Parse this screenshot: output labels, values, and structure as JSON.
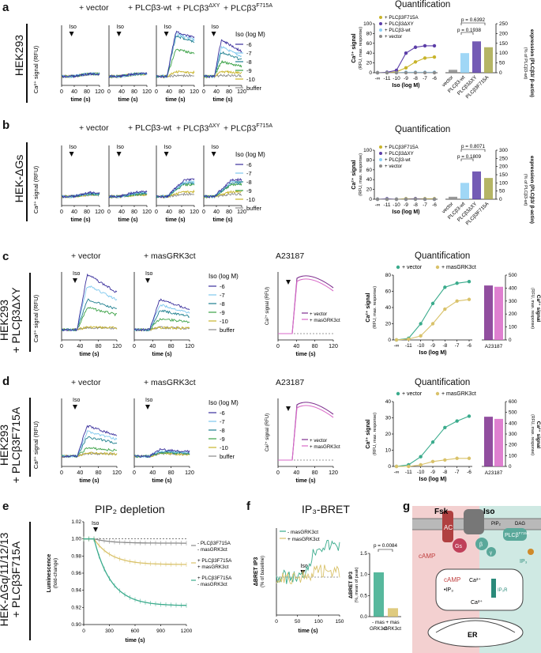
{
  "colors": {
    "c_m6": "#3a2f9c",
    "c_m7": "#7fc8ee",
    "c_m8": "#1e7f8e",
    "c_m9": "#3aa145",
    "c_m10": "#c8b42a",
    "c_buf": "#8a8a8a",
    "teal": "#3aab8c",
    "gold": "#d9c26a",
    "dark_purple": "#7e2f8e",
    "pink": "#d96ac8",
    "gray": "#8a8a8a",
    "lightblue": "#8fd0f5",
    "bar_purple": "#5c3ea8",
    "bar_olive": "#a8a84a",
    "g_red_bg": "#f3d0d0",
    "g_teal_bg": "#cfe9e3"
  },
  "panels": {
    "a": {
      "label": "a",
      "row_label": "HEK293",
      "conditions": [
        "+ vector",
        "+ PLCβ3-wt",
        "+ PLCβ3",
        "+ PLCβ3"
      ],
      "superscripts": [
        "",
        "",
        "ΔXY",
        "F715A"
      ],
      "quant_title": "Quantification",
      "legend_title": "Iso (log M)",
      "legend_entries": [
        "-6",
        "-7",
        "-8",
        "-9",
        "-10",
        "buffer"
      ],
      "ylabel": "Ca²⁺ signal (RFU)",
      "xlabel": "time (s)",
      "xticks": [
        "0",
        "40",
        "80",
        "120"
      ],
      "iso": "Iso",
      "quant_legend": [
        "+ PLCβ3F715A",
        "+ PLCβ3ΔXY",
        "+ PLCβ3-wt",
        "+ vector"
      ],
      "quant_ylabel": "Ca²⁺ signal",
      "quant_ylabel2": "(RFU, max. response)",
      "quant_xlabel": "Iso (log M)",
      "quant_yticks": [
        "0",
        "20",
        "40",
        "60",
        "80",
        "100"
      ],
      "quant_xticks": [
        "-∞",
        "-11",
        "-10",
        "-9",
        "-8",
        "-7",
        "-6"
      ],
      "bar_pvals": [
        "p = 0.6392",
        "p = 0.1938"
      ],
      "bar_yticks": [
        "0",
        "50",
        "100",
        "150",
        "200",
        "250"
      ],
      "bar_categories": [
        "vector",
        "PLCβ3-wt",
        "PLCβ3ΔXY",
        "PLCβ3F715A"
      ],
      "bar_ylabel": "expression (PLCβ3/ β-actin)",
      "bar_ylabel2": "(% of PLCβ3-wt)"
    },
    "b": {
      "label": "b",
      "row_label": "HEK-ΔGs",
      "conditions": [
        "+ vector",
        "+ PLCβ3-wt",
        "+ PLCβ3",
        "+ PLCβ3"
      ],
      "superscripts": [
        "",
        "",
        "ΔXY",
        "F715A"
      ],
      "quant_title": "Quantification",
      "legend_title": "Iso (log M)",
      "legend_entries": [
        "-6",
        "-7",
        "-8",
        "-9",
        "-10",
        "buffer"
      ],
      "ylabel": "Ca²⁺ signal (RFU)",
      "xlabel": "time (s)",
      "xticks": [
        "0",
        "40",
        "80",
        "120"
      ],
      "iso": "Iso",
      "quant_legend": [
        "+ PLCβ3F715A",
        "+ PLCβ3ΔXY",
        "+ PLCβ3-wt",
        "+ vector"
      ],
      "quant_ylabel": "Ca²⁺ signal",
      "quant_ylabel2": "(RFU, max. response)",
      "quant_xlabel": "Iso (log M)",
      "quant_yticks": [
        "0",
        "20",
        "40",
        "60",
        "80",
        "100"
      ],
      "quant_xticks": [
        "-∞",
        "-11",
        "-10",
        "-9",
        "-8",
        "-7",
        "-6"
      ],
      "bar_pvals": [
        "p = 0.8071",
        "p = 0.1809"
      ],
      "bar_yticks": [
        "0",
        "50",
        "100",
        "150",
        "200",
        "250",
        "300"
      ],
      "bar_categories": [
        "vector",
        "PLCβ3-wt",
        "PLCβ3ΔXY",
        "PLCβ3F715A"
      ],
      "bar_ylabel": "expression (PLCβ3/ β-actin)",
      "bar_ylabel2": "(% of PLCβ3-wt)"
    },
    "c": {
      "label": "c",
      "row_label_1": "HEK293",
      "row_label_2": "+ PLCβ3ΔXY",
      "conditions": [
        "+ vector",
        "+ masGRK3ct",
        "A23187",
        "Quantification"
      ],
      "legend_title": "Iso (log M)",
      "legend_entries": [
        "-6",
        "-7",
        "-8",
        "-9",
        "-10",
        "buffer"
      ],
      "a23_legend": [
        "+ vector",
        "+ masGRK3ct"
      ],
      "quant_legend": [
        "+ vector",
        "+ masGRK3ct"
      ],
      "ylabel": "Ca²⁺ signal (RFU)",
      "xlabel": "time (s)",
      "xticks": [
        "0",
        "40",
        "80",
        "120"
      ],
      "iso": "Iso",
      "quant_ylabel": "Ca²⁺ signal",
      "quant_ylabel2": "(RFU, max. response)",
      "quant_xlabel": "Iso (log M)",
      "quant_yticks": [
        "0",
        "20",
        "40",
        "60",
        "80"
      ],
      "quant_xticks": [
        "-∞",
        "-11",
        "-10",
        "-9",
        "-8",
        "-7",
        "-6"
      ],
      "bar_yticks": [
        "0",
        "100",
        "200",
        "300",
        "400",
        "500"
      ],
      "bar_category": "A23187",
      "bar_ylabel": "Ca²⁺ signal",
      "bar_ylabel2": "(RFU, max. response)"
    },
    "d": {
      "label": "d",
      "row_label_1": "HEK293",
      "row_label_2": "+ PLCβ3F715A",
      "conditions": [
        "+ vector",
        "+ masGRK3ct",
        "A23187",
        "Quantification"
      ],
      "legend_title": "Iso (log M)",
      "legend_entries": [
        "-6",
        "-7",
        "-8",
        "-9",
        "-10",
        "buffer"
      ],
      "a23_legend": [
        "+ vector",
        "+ masGRK3ct"
      ],
      "quant_legend": [
        "+ vector",
        "+ masGRK3ct"
      ],
      "ylabel": "Ca²⁺ signal (RFU)",
      "xlabel": "time (s)",
      "xticks": [
        "0",
        "40",
        "80",
        "120"
      ],
      "iso": "Iso",
      "quant_ylabel": "Ca²⁺ signal",
      "quant_ylabel2": "(RFU, max. response)",
      "quant_xlabel": "Iso (log M)",
      "quant_yticks": [
        "0",
        "10",
        "20",
        "30",
        "40"
      ],
      "quant_xticks": [
        "-∞",
        "-11",
        "-10",
        "-9",
        "-8",
        "-7",
        "-6"
      ],
      "bar_yticks": [
        "0",
        "100",
        "200",
        "300",
        "400",
        "500",
        "600"
      ],
      "bar_category": "A23187",
      "bar_ylabel": "Ca²⁺ signal",
      "bar_ylabel2": "(RFU, max. response)"
    },
    "e": {
      "label": "e",
      "row_label_1": "HEK-ΔGq/11/12/13",
      "row_label_2": "+ PLCβ3F715A",
      "title": "PIP₂ depletion",
      "ylabel": "Luminescence",
      "ylabel2": "(fold-change)",
      "xlabel": "time (s)",
      "yticks": [
        "0.90",
        "0.92",
        "0.94",
        "0.96",
        "0.98",
        "1.00",
        "1.02"
      ],
      "xticks": [
        "0",
        "300",
        "600",
        "900",
        "1200"
      ],
      "iso": "Iso",
      "legend": [
        "- PLCβ3F715A",
        "- masGRK3ct",
        "+ PLCβ3F715A",
        "+ masGRK3ct",
        "+ PLCβ3F715A",
        "- masGRK3ct"
      ]
    },
    "f": {
      "label": "f",
      "title": "IP₃-BRET",
      "ylabel": "ΔBRET IP3",
      "ylabel2": "(% of baseline)",
      "xlabel": "time (s)",
      "xticks": [
        "0",
        "50",
        "100",
        "150"
      ],
      "iso": "Iso",
      "legend": [
        "- masGRK3ct",
        "+ masGRK3ct"
      ],
      "bar_pval": "p = 0.0084",
      "bar_ylabel": "ΔBRET IP3",
      "bar_ylabel2": "(%, mean of peak)",
      "bar_yticks": [
        "0.0",
        "0.5",
        "1.0",
        "1.5"
      ],
      "bar_categories": [
        "- mas",
        "+ mas"
      ],
      "bar_categories2": [
        "GRK3ct",
        "GRK3ct"
      ]
    },
    "g": {
      "label": "g",
      "texts": [
        "Fsk",
        "Iso",
        "AC",
        "Gs",
        "β",
        "γ",
        "PLCβ",
        "F715A",
        "PIP₂",
        "DAG",
        "IP₃",
        "cAMP",
        "cAMP",
        "Ca²⁺",
        "Ca²⁺",
        "IP₃R",
        "ER",
        "•IP₃"
      ]
    }
  },
  "chart_data": [
    {
      "type": "line",
      "title": "Panel a traces",
      "x": [
        0,
        20,
        40,
        60,
        80,
        100,
        120
      ],
      "series": [
        {
          "name": "+ vector, -6",
          "values": [
            10,
            10,
            11,
            11,
            10,
            10,
            10
          ]
        },
        {
          "name": "+ PLCβ3ΔXY, -6",
          "values": [
            10,
            10,
            62,
            70,
            65,
            60,
            55
          ]
        },
        {
          "name": "+ PLCβ3F715A, -6",
          "values": [
            10,
            10,
            52,
            45,
            35,
            28,
            24
          ]
        }
      ],
      "xlabel": "time (s)",
      "ylabel": "Ca²⁺ signal (RFU)"
    },
    {
      "type": "line",
      "title": "Panel a Quantification",
      "categories": [
        "-∞",
        "-11",
        "-10",
        "-9",
        "-8",
        "-7",
        "-6"
      ],
      "series": [
        {
          "name": "+ PLCβ3F715A",
          "values": [
            0,
            0,
            2,
            10,
            22,
            30,
            32
          ]
        },
        {
          "name": "+ PLCβ3ΔXY",
          "values": [
            0,
            1,
            5,
            40,
            52,
            55,
            55
          ]
        },
        {
          "name": "+ PLCβ3-wt",
          "values": [
            0,
            0,
            0,
            1,
            1,
            1,
            1
          ]
        },
        {
          "name": "+ vector",
          "values": [
            0,
            0,
            0,
            0,
            0,
            0,
            0
          ]
        }
      ],
      "xlabel": "Iso (log M)",
      "ylabel": "Ca²⁺ signal (RFU, max. response)",
      "ylim": [
        0,
        100
      ]
    },
    {
      "type": "bar",
      "title": "Panel a expression",
      "categories": [
        "vector",
        "PLCβ3-wt",
        "PLCβ3ΔXY",
        "PLCβ3F715A"
      ],
      "values": [
        15,
        100,
        160,
        130
      ],
      "ylim": [
        0,
        250
      ]
    },
    {
      "type": "bar",
      "title": "Panel b expression",
      "categories": [
        "vector",
        "PLCβ3-wt",
        "PLCβ3ΔXY",
        "PLCβ3F715A"
      ],
      "values": [
        15,
        100,
        170,
        130
      ],
      "ylim": [
        0,
        300
      ]
    },
    {
      "type": "line",
      "title": "Panel c Quantification",
      "categories": [
        "-∞",
        "-11",
        "-10",
        "-9",
        "-8",
        "-7",
        "-6"
      ],
      "series": [
        {
          "name": "+ vector",
          "values": [
            0,
            2,
            20,
            45,
            65,
            70,
            72
          ]
        },
        {
          "name": "+ masGRK3ct",
          "values": [
            0,
            1,
            5,
            20,
            38,
            48,
            50
          ]
        }
      ],
      "ylim": [
        0,
        80
      ]
    },
    {
      "type": "line",
      "title": "Panel d Quantification",
      "categories": [
        "-∞",
        "-11",
        "-10",
        "-9",
        "-8",
        "-7",
        "-6"
      ],
      "series": [
        {
          "name": "+ vector",
          "values": [
            0,
            1,
            6,
            15,
            24,
            28,
            31
          ]
        },
        {
          "name": "+ masGRK3ct",
          "values": [
            0,
            0,
            1,
            3,
            4,
            5,
            5
          ]
        }
      ],
      "ylim": [
        0,
        40
      ]
    },
    {
      "type": "bar",
      "title": "Panel f BRET peak",
      "categories": [
        "- mas GRK3ct",
        "+ mas GRK3ct"
      ],
      "values": [
        1.05,
        0.2
      ],
      "ylim": [
        0,
        1.5
      ]
    }
  ]
}
